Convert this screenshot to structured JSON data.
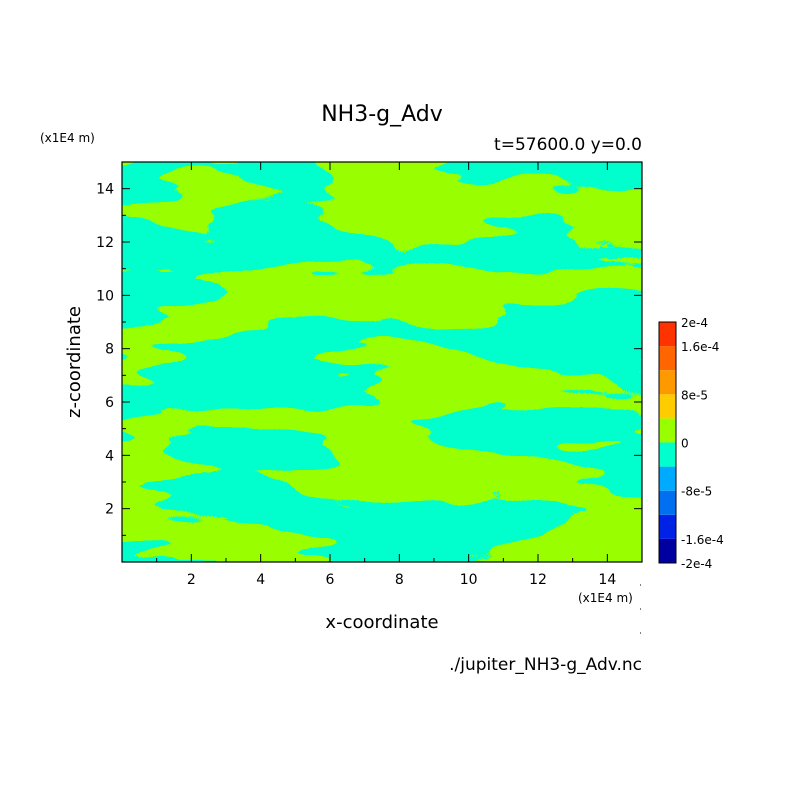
{
  "chart_data": {
    "type": "heatmap",
    "title": "NH3-g_Adv",
    "subtitle": "t=57600.0 y=0.0",
    "xlabel": "x-coordinate",
    "ylabel": "z-coordinate",
    "x_unit": "(x1E4 m)",
    "y_unit": "(x1E4 m)",
    "xlim": [
      0,
      15
    ],
    "ylim": [
      0,
      15
    ],
    "x_ticks": [
      "2",
      "4",
      "6",
      "8",
      "10",
      "12",
      "14"
    ],
    "y_ticks": [
      "2",
      "4",
      "6",
      "8",
      "10",
      "12",
      "14"
    ],
    "colorbar": {
      "levels": [
        -0.0002,
        -0.00016,
        -0.00012,
        -8e-05,
        -4e-05,
        0,
        4e-05,
        8e-05,
        0.00012,
        0.00016,
        0.0002
      ],
      "colors": [
        "#0000a0",
        "#0022e6",
        "#0070f0",
        "#00aaff",
        "#00ffcc",
        "#99ff00",
        "#ffcc00",
        "#ff9900",
        "#ff6600",
        "#ff3300"
      ],
      "tick_labels": [
        {
          "value": -0.0002,
          "label": "-2e-4"
        },
        {
          "value": -0.00016,
          "label": "-1.6e-4"
        },
        {
          "value": -8e-05,
          "label": "-8e-5"
        },
        {
          "value": 0,
          "label": "0"
        },
        {
          "value": 8e-05,
          "label": "8e-5"
        },
        {
          "value": 0.00016,
          "label": "1.6e-4"
        },
        {
          "value": 0.0002,
          "label": "2e-4"
        }
      ]
    },
    "field_description": "Noisy pattern of two levels: small negative (cyan, approx -4e-5 to 0) and small positive (green, approx 0 to 4e-5), horizontally elongated streaks"
  },
  "footer": {
    "filename": "./jupiter_NH3-g_Adv.nc"
  }
}
